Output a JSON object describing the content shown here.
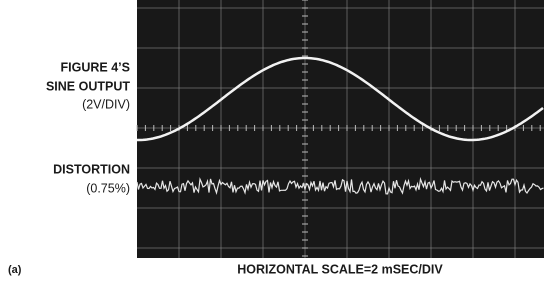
{
  "panel": "(a)",
  "traces": [
    {
      "name_lines": [
        "FIGURE 4’S",
        "SINE OUTPUT"
      ],
      "scale": "(2V/DIV)"
    },
    {
      "name_lines": [
        "DISTORTION"
      ],
      "scale": "(0.75%)"
    }
  ],
  "x_axis_label": "HORIZONTAL SCALE=2 mSEC/DIV"
}
